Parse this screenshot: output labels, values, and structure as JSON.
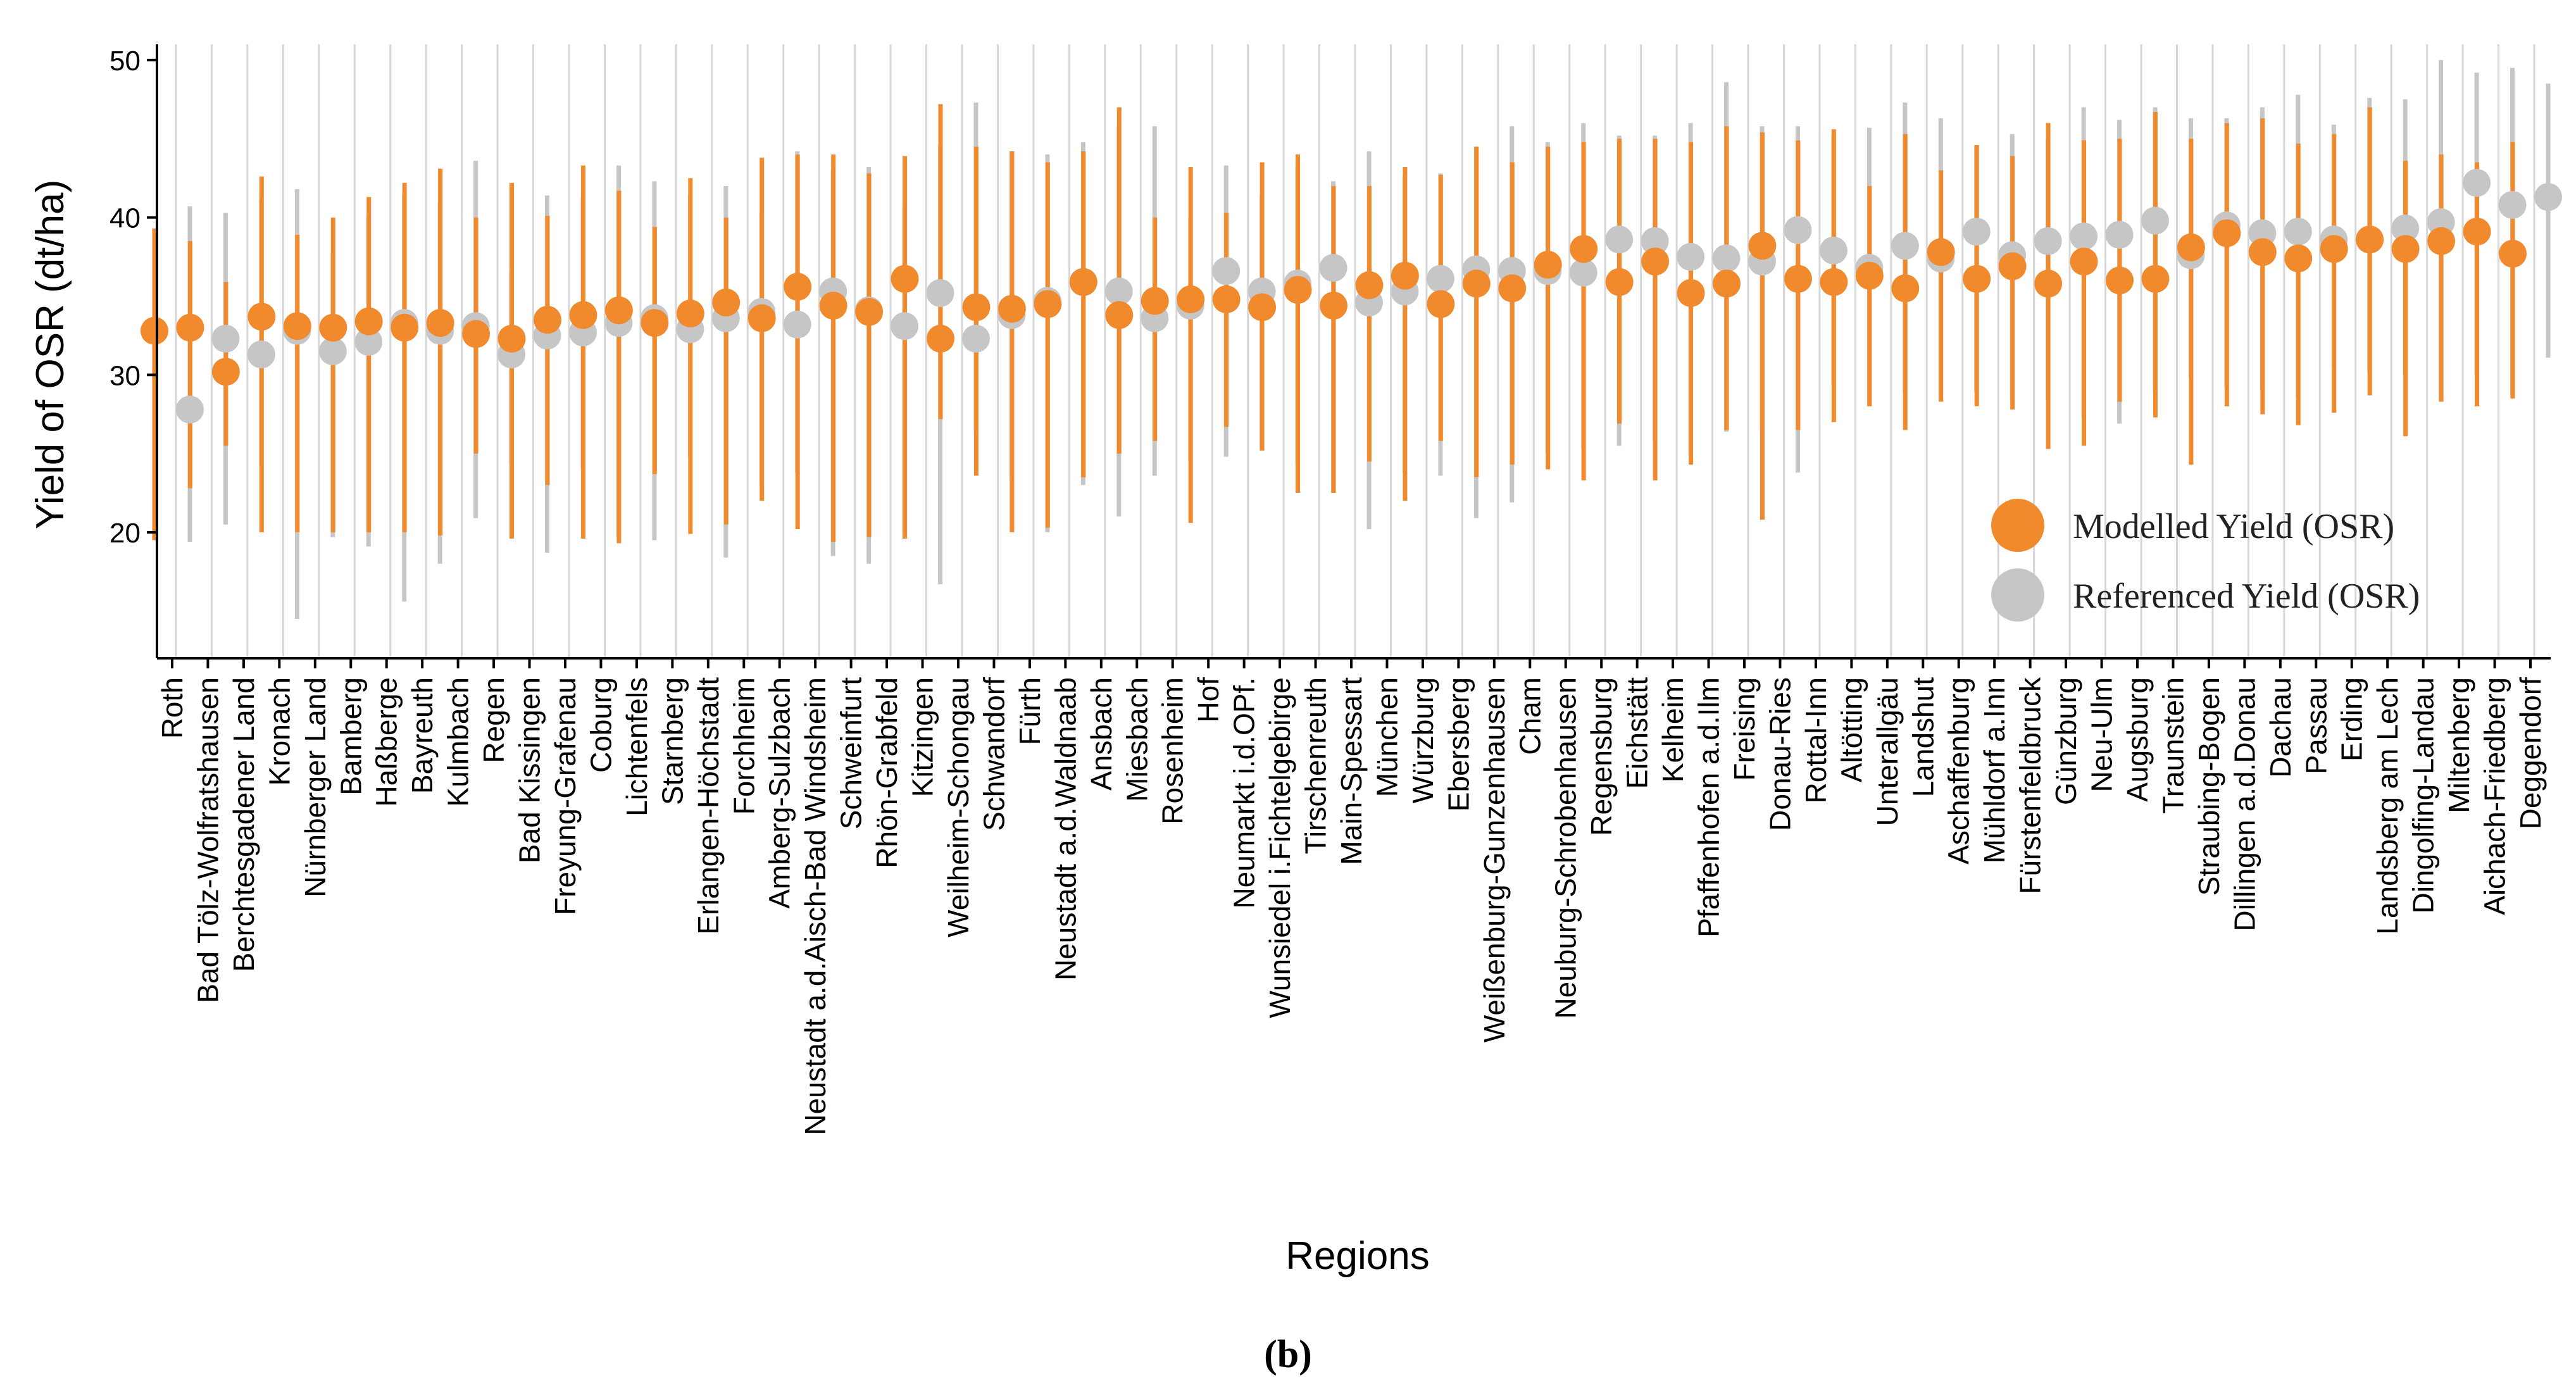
{
  "chart_data": {
    "type": "scatter",
    "title": "",
    "panel_label": "(b)",
    "xlabel": "Regions",
    "ylabel": "Yield of OSR (dt/ha)",
    "ylim": [
      12,
      51
    ],
    "yticks": [
      20,
      30,
      40,
      50
    ],
    "colors": {
      "modelled": "#F08A2C",
      "referenced": "#C6C6C6",
      "vline": "#D7D7D7"
    },
    "legend": {
      "position": "bottom-right",
      "entries": [
        "Modelled Yield (OSR)",
        "Referenced Yield (OSR)"
      ]
    },
    "categories": [
      "Roth",
      "Bad Tölz-Wolfratshausen",
      "Berchtesgadener Land",
      "Kronach",
      "Nürnberger Land",
      "Bamberg",
      "Haßberge",
      "Bayreuth",
      "Kulmbach",
      "Regen",
      "Bad Kissingen",
      "Freyung-Grafenau",
      "Coburg",
      "Lichtenfels",
      "Starnberg",
      "Erlangen-Höchstadt",
      "Forchheim",
      "Amberg-Sulzbach",
      "Neustadt a.d.Aisch-Bad Windsheim",
      "Schweinfurt",
      "Rhön-Grabfeld",
      "Kitzingen",
      "Weilheim-Schongau",
      "Schwandorf",
      "Fürth",
      "Neustadt a.d.Waldnaab",
      "Ansbach",
      "Miesbach",
      "Rosenheim",
      "Hof",
      "Neumarkt i.d.OPf.",
      "Wunsiedel i.Fichtelgebirge",
      "Tirschenreuth",
      "Main-Spessart",
      "München",
      "Würzburg",
      "Ebersberg",
      "Weißenburg-Gunzenhausen",
      "Cham",
      "Neuburg-Schrobenhausen",
      "Regensburg",
      "Eichstätt",
      "Kelheim",
      "Pfaffenhofen a.d.Ilm",
      "Freising",
      "Donau-Ries",
      "Rottal-Inn",
      "Altötting",
      "Unterallgäu",
      "Landshut",
      "Aschaffenburg",
      "Mühldorf a.Inn",
      "Fürstenfeldbruck",
      "Günzburg",
      "Neu-Ulm",
      "Augsburg",
      "Traunstein",
      "Straubing-Bogen",
      "Dillingen a.d.Donau",
      "Dachau",
      "Passau",
      "Erding",
      "Landsberg am Lech",
      "Dingolfing-Landau",
      "Miltenberg",
      "Aichach-Friedberg",
      "Deggendorf"
    ],
    "series": [
      {
        "name": "Modelled Yield (OSR)",
        "values": [
          32.8,
          33.0,
          30.2,
          33.7,
          33.1,
          33.0,
          33.4,
          33.0,
          33.3,
          32.6,
          32.3,
          33.5,
          33.8,
          34.1,
          33.3,
          33.9,
          34.6,
          33.6,
          35.6,
          34.4,
          34.0,
          36.1,
          32.3,
          34.3,
          34.2,
          34.5,
          35.9,
          33.8,
          34.7,
          34.8,
          34.8,
          34.3,
          35.4,
          34.4,
          35.7,
          36.3,
          34.5,
          35.8,
          35.5,
          37.0,
          38.0,
          35.9,
          37.2,
          35.2,
          35.8,
          38.2,
          36.1,
          35.9,
          36.3,
          35.5,
          37.8,
          36.1,
          36.9,
          35.8,
          37.2,
          36.0,
          36.1,
          38.1,
          39.0,
          37.8,
          37.4,
          38.0,
          38.6,
          38.0,
          38.5,
          39.1,
          37.7
        ],
        "low": [
          19.5,
          22.8,
          25.5,
          20.0,
          20.0,
          20.0,
          20.0,
          20.0,
          19.8,
          25.0,
          19.6,
          23.0,
          19.6,
          19.3,
          23.7,
          19.9,
          20.5,
          22.0,
          20.2,
          19.4,
          19.7,
          19.6,
          27.2,
          23.6,
          20.0,
          20.3,
          23.5,
          25.0,
          25.8,
          20.6,
          26.7,
          25.2,
          22.5,
          22.5,
          24.5,
          22.0,
          25.8,
          23.5,
          24.3,
          24.0,
          23.3,
          26.9,
          23.3,
          24.3,
          26.5,
          20.8,
          26.5,
          27.0,
          28.0,
          26.5,
          28.3,
          28.0,
          27.8,
          25.3,
          25.5,
          28.3,
          27.3,
          24.3,
          28.0,
          27.5,
          26.8,
          27.6,
          28.7,
          26.1,
          28.3,
          28.0,
          28.5
        ],
        "high": [
          39.3,
          38.5,
          35.9,
          42.6,
          38.9,
          40.0,
          41.3,
          42.2,
          43.1,
          40.0,
          42.2,
          40.1,
          43.3,
          41.7,
          39.4,
          42.5,
          40.0,
          43.8,
          44.0,
          44.0,
          42.8,
          43.9,
          47.2,
          44.5,
          44.2,
          43.5,
          44.2,
          47.0,
          40.0,
          43.2,
          40.3,
          43.5,
          44.0,
          42.0,
          42.0,
          43.2,
          42.7,
          44.5,
          43.5,
          44.5,
          44.8,
          45.0,
          45.0,
          44.8,
          45.8,
          45.4,
          44.9,
          45.6,
          42.0,
          45.3,
          43.0,
          44.6,
          43.9,
          46.0,
          44.9,
          45.0,
          46.7,
          45.0,
          46.0,
          46.3,
          44.7,
          45.3,
          47.0,
          43.6,
          44.0,
          43.5,
          44.8
        ]
      },
      {
        "name": "Referenced Yield (OSR)",
        "values": [
          27.8,
          32.3,
          31.3,
          32.8,
          31.5,
          32.1,
          33.3,
          32.8,
          33.1,
          31.3,
          32.5,
          32.7,
          33.3,
          33.6,
          32.9,
          33.6,
          34.0,
          33.2,
          35.3,
          34.1,
          33.1,
          35.2,
          32.3,
          33.8,
          34.7,
          35.9,
          35.3,
          33.6,
          34.4,
          36.6,
          35.3,
          35.8,
          36.8,
          34.6,
          35.3,
          36.1,
          36.7,
          36.6,
          36.6,
          36.5,
          38.6,
          38.5,
          37.5,
          37.4,
          37.2,
          39.2,
          37.9,
          36.8,
          38.2,
          37.4,
          39.1,
          37.6,
          38.5,
          38.8,
          38.9,
          39.8,
          37.6,
          39.5,
          39.0,
          39.1,
          38.6,
          38.6,
          39.3,
          39.7,
          42.2,
          40.8,
          41.3
        ],
        "low": [
          19.4,
          20.5,
          24.2,
          14.5,
          19.7,
          19.1,
          15.6,
          18.0,
          20.9,
          24.4,
          18.7,
          24.0,
          19.7,
          19.5,
          24.8,
          18.4,
          23.0,
          23.8,
          18.5,
          18.0,
          19.8,
          16.7,
          26.4,
          23.3,
          20.0,
          23.0,
          21.0,
          23.6,
          24.6,
          24.8,
          25.2,
          24.3,
          22.5,
          20.2,
          23.8,
          23.6,
          20.9,
          21.9,
          25.0,
          25.3,
          25.5,
          25.8,
          24.9,
          26.4,
          26.5,
          23.8,
          29.4,
          28.0,
          28.9,
          28.4,
          28.9,
          28.5,
          28.4,
          27.3,
          26.9,
          29.0,
          29.8,
          29.2,
          29.1,
          28.5,
          30.4,
          30.2,
          30.0,
          28.3,
          30.0,
          28.5,
          31.1
        ],
        "high": [
          40.7,
          40.3,
          41.2,
          41.8,
          37.7,
          40.1,
          41.5,
          41.0,
          43.6,
          36.5,
          41.4,
          41.3,
          43.3,
          42.3,
          41.4,
          42.0,
          40.3,
          44.2,
          43.0,
          43.2,
          40.7,
          44.6,
          47.3,
          44.2,
          44.0,
          44.8,
          45.8,
          45.8,
          40.0,
          43.3,
          41.4,
          43.2,
          42.3,
          44.2,
          42.6,
          42.8,
          44.5,
          45.8,
          44.8,
          46.0,
          45.2,
          45.2,
          46.0,
          48.6,
          45.8,
          45.8,
          45.3,
          45.7,
          47.3,
          46.3,
          44.6,
          45.3,
          45.0,
          47.0,
          46.2,
          47.0,
          46.3,
          46.3,
          47.0,
          47.8,
          45.9,
          47.6,
          47.5,
          50.0,
          49.2,
          49.5,
          48.5
        ]
      }
    ]
  }
}
